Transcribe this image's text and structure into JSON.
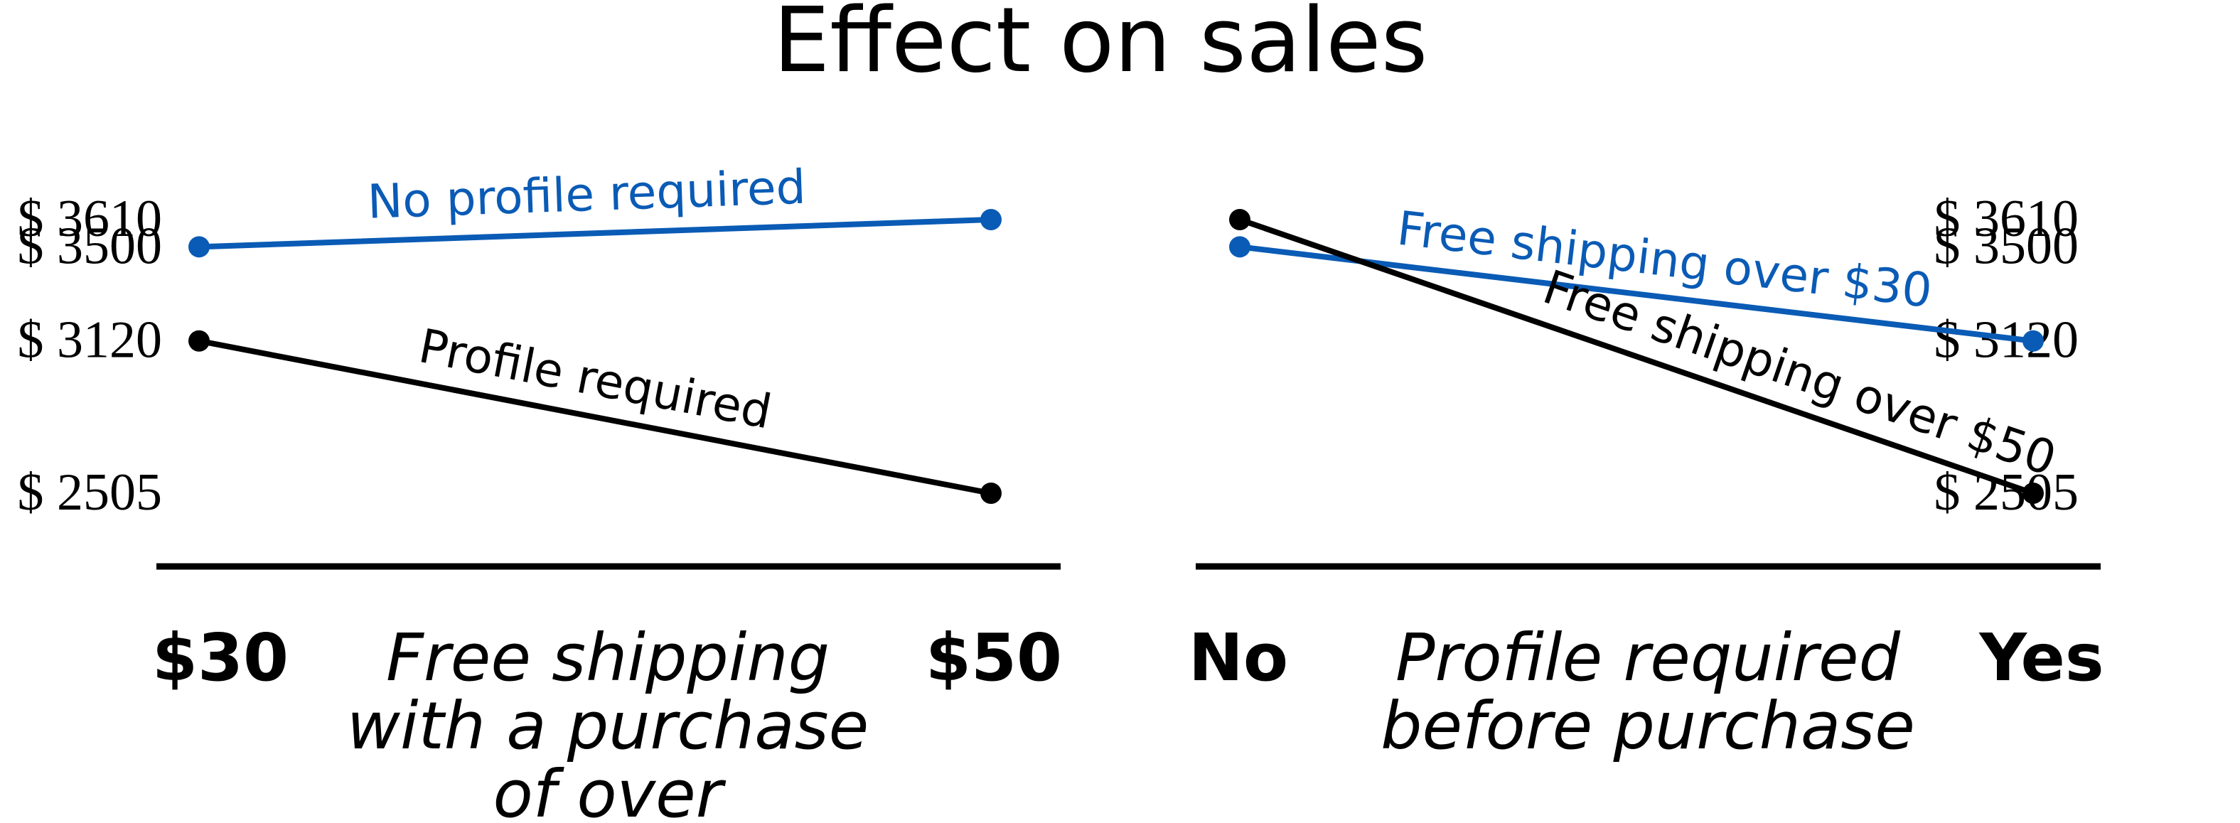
{
  "title": "Effect on sales",
  "colors": {
    "blue": "#0a5bb5",
    "black": "#000000"
  },
  "chart_data": [
    {
      "type": "line",
      "title": "",
      "xlabel": "Free shipping with a purchase of over",
      "xlabel_lines": [
        "Free shipping",
        "with a purchase",
        "of over"
      ],
      "ylabel": "",
      "categories": [
        "$30",
        "$50"
      ],
      "ytick_labels": [
        "$ 3610",
        "$ 3500",
        "$ 3120",
        "$ 2505"
      ],
      "ylim": [
        2505,
        3610
      ],
      "series": [
        {
          "name": "No profile required",
          "values": [
            3500,
            3610
          ],
          "color": "#0a5bb5"
        },
        {
          "name": "Profile required",
          "values": [
            3120,
            2505
          ],
          "color": "#000000"
        }
      ]
    },
    {
      "type": "line",
      "title": "",
      "xlabel": "Profile required before purchase",
      "xlabel_lines": [
        "Profile required",
        "before purchase"
      ],
      "ylabel": "",
      "categories": [
        "No",
        "Yes"
      ],
      "ytick_labels": [
        "$ 3610",
        "$ 3500",
        "$ 3120",
        "$ 2505"
      ],
      "ylim": [
        2505,
        3610
      ],
      "series": [
        {
          "name": "Free shipping over $30",
          "values": [
            3500,
            3120
          ],
          "color": "#0a5bb5"
        },
        {
          "name": "Free shipping over $50",
          "values": [
            3610,
            2505
          ],
          "color": "#000000"
        }
      ]
    }
  ]
}
